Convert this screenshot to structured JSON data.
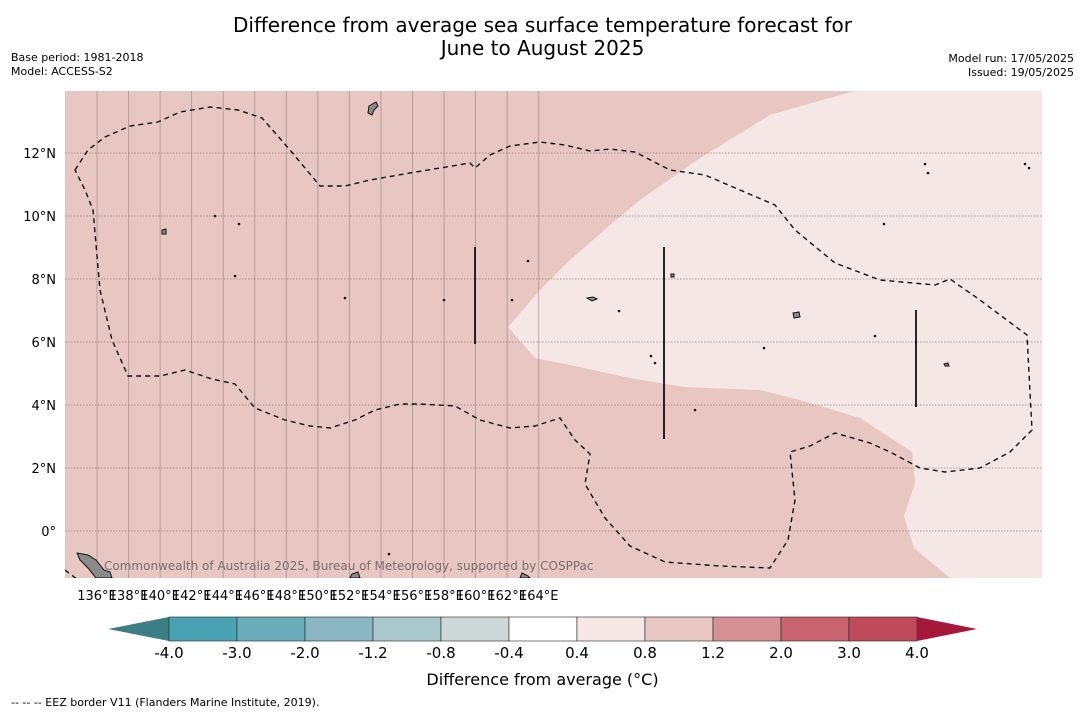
{
  "header": {
    "title_line1": "Difference from average sea surface temperature forecast for",
    "title_line2": "June to August 2025",
    "base_period": "Base period: 1981-2018",
    "model": "Model: ACCESS-S2",
    "model_run": "Model run: 17/05/2025",
    "issued": "Issued: 19/05/2025"
  },
  "map": {
    "lon_ticks": [
      "136°E",
      "138°E",
      "140°E",
      "142°E",
      "144°E",
      "146°E",
      "148°E",
      "150°E",
      "152°E",
      "154°E",
      "156°E",
      "158°E",
      "160°E",
      "162°E",
      "164°E"
    ],
    "lat_ticks": [
      "12°N",
      "10°N",
      "8°N",
      "6°N",
      "4°N",
      "2°N",
      "0°"
    ],
    "watermark": "Commonwealth of Australia 2025, Bureau of Meteorology, supported by COSPPac",
    "colors": {
      "anomaly_0_8_to_1_2": "#e8c6c2",
      "anomaly_0_4_to_0_8": "#f5e7e5",
      "land": "#8a8a8a"
    }
  },
  "colorbar": {
    "title": "Difference from average (°C)",
    "tick_labels": [
      "-4.0",
      "-3.0",
      "-2.0",
      "-1.2",
      "-0.8",
      "-0.4",
      "0.4",
      "0.8",
      "1.2",
      "2.0",
      "3.0",
      "4.0"
    ],
    "under_color": "#3b7f85",
    "over_color": "#a5183a",
    "colors": [
      "#4aa3b3",
      "#6cadbc",
      "#8ab7c1",
      "#aac7cb",
      "#cfd8d9",
      "#ffffff",
      "#f5e7e5",
      "#e8c6c2",
      "#d69197",
      "#c8636f",
      "#be4a5b"
    ]
  },
  "footnote": "--  --  -- EEZ border V11 (Flanders Marine Institute, 2019)."
}
